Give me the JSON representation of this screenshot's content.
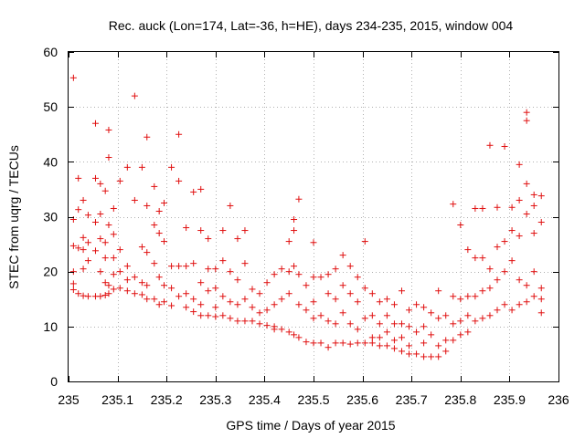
{
  "chart_data": {
    "type": "scatter",
    "title": "Rec. auck (Lon=174, Lat=-36, h=HE), days 234-235, 2015, window 004",
    "xlabel": "GPS time / Days of year 2015",
    "ylabel": "STEC from uqrg / TECUs",
    "xlim": [
      235,
      236
    ],
    "ylim": [
      0,
      60
    ],
    "xticks": [
      235,
      235.1,
      235.2,
      235.3,
      235.4,
      235.5,
      235.6,
      235.7,
      235.8,
      235.9,
      236
    ],
    "xtick_labels": [
      "235",
      "235.1",
      "235.2",
      "235.3",
      "235.4",
      "235.5",
      "235.6",
      "235.7",
      "235.8",
      "235.9",
      "236"
    ],
    "yticks": [
      0,
      10,
      20,
      30,
      40,
      50,
      60
    ],
    "ytick_labels": [
      "0",
      "10",
      "20",
      "30",
      "40",
      "50",
      "60"
    ],
    "grid": true,
    "marker": "+",
    "color": "#e01010",
    "series": [
      {
        "name": "STEC",
        "points": [
          [
            235.01,
            55.3
          ],
          [
            235.01,
            29.5
          ],
          [
            235.01,
            24.7
          ],
          [
            235.01,
            20.0
          ],
          [
            235.01,
            17.8
          ],
          [
            235.01,
            16.7
          ],
          [
            235.02,
            37.0
          ],
          [
            235.02,
            31.3
          ],
          [
            235.02,
            24.3
          ],
          [
            235.02,
            16.0
          ],
          [
            235.03,
            33.0
          ],
          [
            235.03,
            26.2
          ],
          [
            235.03,
            24.0
          ],
          [
            235.03,
            20.5
          ],
          [
            235.03,
            15.6
          ],
          [
            235.04,
            30.3
          ],
          [
            235.04,
            25.3
          ],
          [
            235.04,
            22.0
          ],
          [
            235.04,
            15.5
          ],
          [
            235.055,
            47.0
          ],
          [
            235.055,
            37.0
          ],
          [
            235.055,
            29.0
          ],
          [
            235.055,
            23.8
          ],
          [
            235.055,
            15.5
          ],
          [
            235.065,
            36.0
          ],
          [
            235.065,
            30.5
          ],
          [
            235.065,
            26.0
          ],
          [
            235.065,
            20.0
          ],
          [
            235.065,
            15.5
          ],
          [
            235.075,
            34.7
          ],
          [
            235.075,
            25.3
          ],
          [
            235.075,
            22.5
          ],
          [
            235.075,
            18.0
          ],
          [
            235.075,
            15.7
          ],
          [
            235.082,
            45.8
          ],
          [
            235.082,
            40.8
          ],
          [
            235.082,
            28.5
          ],
          [
            235.082,
            17.5
          ],
          [
            235.082,
            16.0
          ],
          [
            235.092,
            31.5
          ],
          [
            235.092,
            26.8
          ],
          [
            235.092,
            22.5
          ],
          [
            235.092,
            19.5
          ],
          [
            235.092,
            16.8
          ],
          [
            235.105,
            36.5
          ],
          [
            235.105,
            24.0
          ],
          [
            235.105,
            20.0
          ],
          [
            235.105,
            17.0
          ],
          [
            235.12,
            39.0
          ],
          [
            235.12,
            21.0
          ],
          [
            235.12,
            18.5
          ],
          [
            235.12,
            16.5
          ],
          [
            235.135,
            52.0
          ],
          [
            235.135,
            33.0
          ],
          [
            235.135,
            19.0
          ],
          [
            235.135,
            16.0
          ],
          [
            235.15,
            39.0
          ],
          [
            235.15,
            24.5
          ],
          [
            235.15,
            18.0
          ],
          [
            235.15,
            15.8
          ],
          [
            235.16,
            44.5
          ],
          [
            235.16,
            32.0
          ],
          [
            235.16,
            23.5
          ],
          [
            235.16,
            17.5
          ],
          [
            235.16,
            15.0
          ],
          [
            235.175,
            35.5
          ],
          [
            235.175,
            28.5
          ],
          [
            235.175,
            21.5
          ],
          [
            235.175,
            15.0
          ],
          [
            235.185,
            31.0
          ],
          [
            235.185,
            27.0
          ],
          [
            235.185,
            19.0
          ],
          [
            235.185,
            14.0
          ],
          [
            235.195,
            32.5
          ],
          [
            235.195,
            25.5
          ],
          [
            235.195,
            17.5
          ],
          [
            235.195,
            14.5
          ],
          [
            235.21,
            39.0
          ],
          [
            235.21,
            21.0
          ],
          [
            235.21,
            17.0
          ],
          [
            235.21,
            13.8
          ],
          [
            235.225,
            45.0
          ],
          [
            235.225,
            36.5
          ],
          [
            235.225,
            21.0
          ],
          [
            235.225,
            15.5
          ],
          [
            235.24,
            28.0
          ],
          [
            235.24,
            21.0
          ],
          [
            235.24,
            16.0
          ],
          [
            235.24,
            13.5
          ],
          [
            235.255,
            34.5
          ],
          [
            235.255,
            21.5
          ],
          [
            235.255,
            15.0
          ],
          [
            235.255,
            12.7
          ],
          [
            235.27,
            35.0
          ],
          [
            235.27,
            27.5
          ],
          [
            235.27,
            18.0
          ],
          [
            235.27,
            14.0
          ],
          [
            235.27,
            12.0
          ],
          [
            235.285,
            26.0
          ],
          [
            235.285,
            20.5
          ],
          [
            235.285,
            16.5
          ],
          [
            235.285,
            12.0
          ],
          [
            235.3,
            20.5
          ],
          [
            235.3,
            17.0
          ],
          [
            235.3,
            13.5
          ],
          [
            235.3,
            11.8
          ],
          [
            235.315,
            27.5
          ],
          [
            235.315,
            22.0
          ],
          [
            235.315,
            15.5
          ],
          [
            235.315,
            12.0
          ],
          [
            235.33,
            32.0
          ],
          [
            235.33,
            20.0
          ],
          [
            235.33,
            14.5
          ],
          [
            235.33,
            11.5
          ],
          [
            235.345,
            26.0
          ],
          [
            235.345,
            18.5
          ],
          [
            235.345,
            14.0
          ],
          [
            235.345,
            11.0
          ],
          [
            235.36,
            27.5
          ],
          [
            235.36,
            21.5
          ],
          [
            235.36,
            15.0
          ],
          [
            235.36,
            11.0
          ],
          [
            235.375,
            16.8
          ],
          [
            235.375,
            13.5
          ],
          [
            235.375,
            11.0
          ],
          [
            235.39,
            16.0
          ],
          [
            235.39,
            12.5
          ],
          [
            235.39,
            10.5
          ],
          [
            235.405,
            18.0
          ],
          [
            235.405,
            13.0
          ],
          [
            235.405,
            10.2
          ],
          [
            235.42,
            19.5
          ],
          [
            235.42,
            14.0
          ],
          [
            235.42,
            10.0
          ],
          [
            235.42,
            9.5
          ],
          [
            235.435,
            20.5
          ],
          [
            235.435,
            15.0
          ],
          [
            235.435,
            9.5
          ],
          [
            235.45,
            25.5
          ],
          [
            235.45,
            20.0
          ],
          [
            235.45,
            16.0
          ],
          [
            235.45,
            9.0
          ],
          [
            235.46,
            29.5
          ],
          [
            235.46,
            27.5
          ],
          [
            235.46,
            21.0
          ],
          [
            235.46,
            8.5
          ],
          [
            235.47,
            33.2
          ],
          [
            235.47,
            19.5
          ],
          [
            235.47,
            14.0
          ],
          [
            235.47,
            8.0
          ],
          [
            235.485,
            17.5
          ],
          [
            235.485,
            13.0
          ],
          [
            235.485,
            7.2
          ],
          [
            235.5,
            25.3
          ],
          [
            235.5,
            19.0
          ],
          [
            235.5,
            14.5
          ],
          [
            235.5,
            11.5
          ],
          [
            235.5,
            7.0
          ],
          [
            235.515,
            19.0
          ],
          [
            235.515,
            12.0
          ],
          [
            235.515,
            7.0
          ],
          [
            235.53,
            19.5
          ],
          [
            235.53,
            16.0
          ],
          [
            235.53,
            11.0
          ],
          [
            235.53,
            6.2
          ],
          [
            235.545,
            20.5
          ],
          [
            235.545,
            15.0
          ],
          [
            235.545,
            10.5
          ],
          [
            235.545,
            7.0
          ],
          [
            235.56,
            23.0
          ],
          [
            235.56,
            17.5
          ],
          [
            235.56,
            12.5
          ],
          [
            235.56,
            7.0
          ],
          [
            235.575,
            21.0
          ],
          [
            235.575,
            16.0
          ],
          [
            235.575,
            10.5
          ],
          [
            235.575,
            6.8
          ],
          [
            235.59,
            19.0
          ],
          [
            235.59,
            14.5
          ],
          [
            235.59,
            9.5
          ],
          [
            235.59,
            7.0
          ],
          [
            235.605,
            25.5
          ],
          [
            235.605,
            17.0
          ],
          [
            235.605,
            11.5
          ],
          [
            235.605,
            7.0
          ],
          [
            235.62,
            16.0
          ],
          [
            235.62,
            12.0
          ],
          [
            235.62,
            8.0
          ],
          [
            235.62,
            7.0
          ],
          [
            235.635,
            14.5
          ],
          [
            235.635,
            10.5
          ],
          [
            235.635,
            8.0
          ],
          [
            235.635,
            6.5
          ],
          [
            235.65,
            15.0
          ],
          [
            235.65,
            12.0
          ],
          [
            235.65,
            9.0
          ],
          [
            235.65,
            6.5
          ],
          [
            235.665,
            14.0
          ],
          [
            235.665,
            10.5
          ],
          [
            235.665,
            7.5
          ],
          [
            235.665,
            6.0
          ],
          [
            235.68,
            16.5
          ],
          [
            235.68,
            10.5
          ],
          [
            235.68,
            8.0
          ],
          [
            235.68,
            5.5
          ],
          [
            235.695,
            13.0
          ],
          [
            235.695,
            10.0
          ],
          [
            235.695,
            6.5
          ],
          [
            235.695,
            5.0
          ],
          [
            235.71,
            14.0
          ],
          [
            235.71,
            9.0
          ],
          [
            235.71,
            5.0
          ],
          [
            235.725,
            13.5
          ],
          [
            235.725,
            10.0
          ],
          [
            235.725,
            7.0
          ],
          [
            235.725,
            4.5
          ],
          [
            235.74,
            12.5
          ],
          [
            235.74,
            8.5
          ],
          [
            235.74,
            4.5
          ],
          [
            235.755,
            16.5
          ],
          [
            235.755,
            11.5
          ],
          [
            235.755,
            6.5
          ],
          [
            235.755,
            4.5
          ],
          [
            235.77,
            12.0
          ],
          [
            235.77,
            7.5
          ],
          [
            235.77,
            5.5
          ],
          [
            235.785,
            32.3
          ],
          [
            235.785,
            15.5
          ],
          [
            235.785,
            10.5
          ],
          [
            235.785,
            7.5
          ],
          [
            235.8,
            28.5
          ],
          [
            235.8,
            15.0
          ],
          [
            235.8,
            11.0
          ],
          [
            235.8,
            8.5
          ],
          [
            235.815,
            24.0
          ],
          [
            235.815,
            15.5
          ],
          [
            235.815,
            12.0
          ],
          [
            235.815,
            9.0
          ],
          [
            235.83,
            31.5
          ],
          [
            235.83,
            22.5
          ],
          [
            235.83,
            15.5
          ],
          [
            235.83,
            11.0
          ],
          [
            235.845,
            31.5
          ],
          [
            235.845,
            22.5
          ],
          [
            235.845,
            16.5
          ],
          [
            235.845,
            11.5
          ],
          [
            235.86,
            43.0
          ],
          [
            235.86,
            20.5
          ],
          [
            235.86,
            17.0
          ],
          [
            235.86,
            12.0
          ],
          [
            235.875,
            31.7
          ],
          [
            235.875,
            24.5
          ],
          [
            235.875,
            18.5
          ],
          [
            235.875,
            13.0
          ],
          [
            235.89,
            42.8
          ],
          [
            235.89,
            25.5
          ],
          [
            235.89,
            20.0
          ],
          [
            235.89,
            14.0
          ],
          [
            235.905,
            31.7
          ],
          [
            235.905,
            27.5
          ],
          [
            235.905,
            22.0
          ],
          [
            235.905,
            13.0
          ],
          [
            235.92,
            39.5
          ],
          [
            235.92,
            33.0
          ],
          [
            235.92,
            26.5
          ],
          [
            235.92,
            18.5
          ],
          [
            235.92,
            14.0
          ],
          [
            235.935,
            49.0
          ],
          [
            235.935,
            47.5
          ],
          [
            235.935,
            36.0
          ],
          [
            235.935,
            30.5
          ],
          [
            235.935,
            17.5
          ],
          [
            235.935,
            14.5
          ],
          [
            235.95,
            34.0
          ],
          [
            235.95,
            32.0
          ],
          [
            235.95,
            27.0
          ],
          [
            235.95,
            20.0
          ],
          [
            235.95,
            15.5
          ],
          [
            235.965,
            33.8
          ],
          [
            235.965,
            29.0
          ],
          [
            235.965,
            17.0
          ],
          [
            235.965,
            15.0
          ],
          [
            235.965,
            12.5
          ]
        ]
      }
    ]
  }
}
